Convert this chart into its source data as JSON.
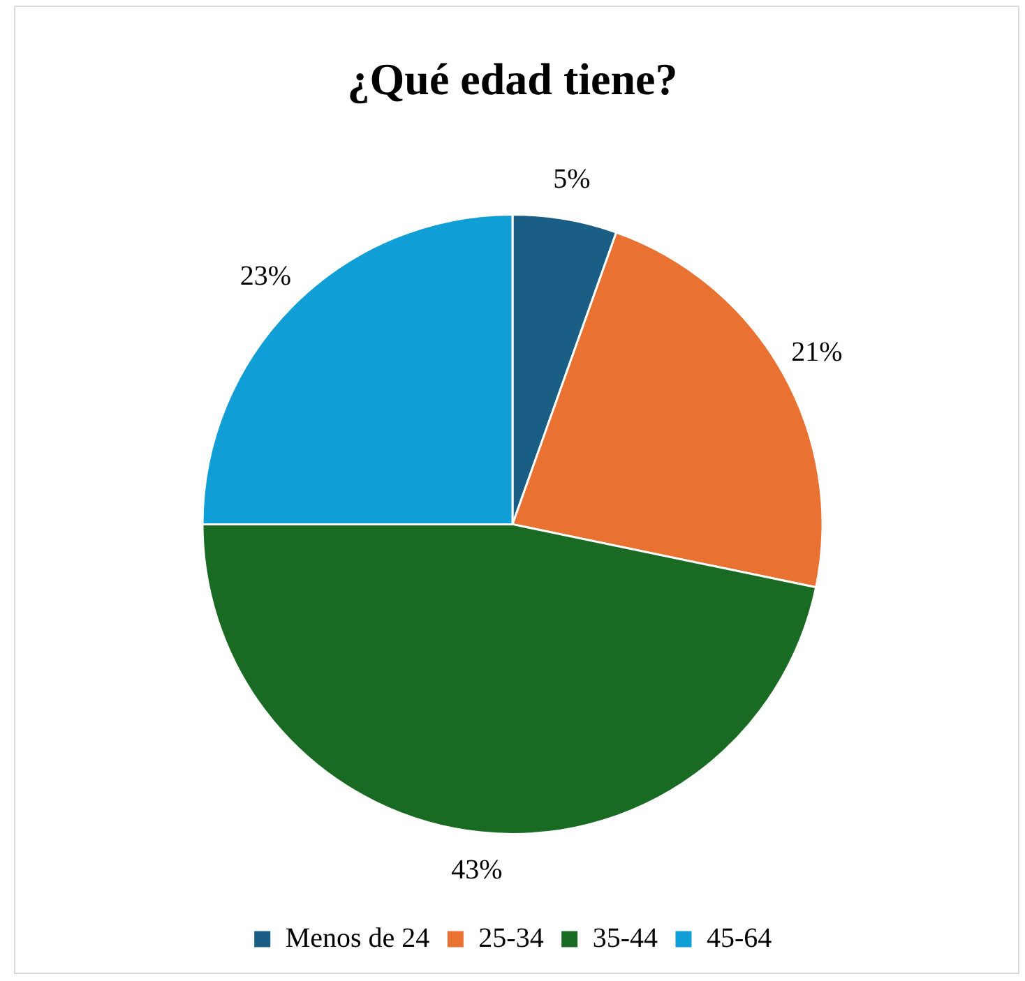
{
  "chart_data": {
    "type": "pie",
    "title": "¿Qué edad tiene?",
    "categories": [
      "Menos de 24",
      "25-34",
      "35-44",
      "45-64"
    ],
    "values": [
      5,
      21,
      43,
      23
    ],
    "colors": [
      "#1a5e85",
      "#e97132",
      "#196b24",
      "#0f9ed5"
    ],
    "value_labels": [
      "5%",
      "21%",
      "43%",
      "23%"
    ],
    "legend": "bottom"
  }
}
